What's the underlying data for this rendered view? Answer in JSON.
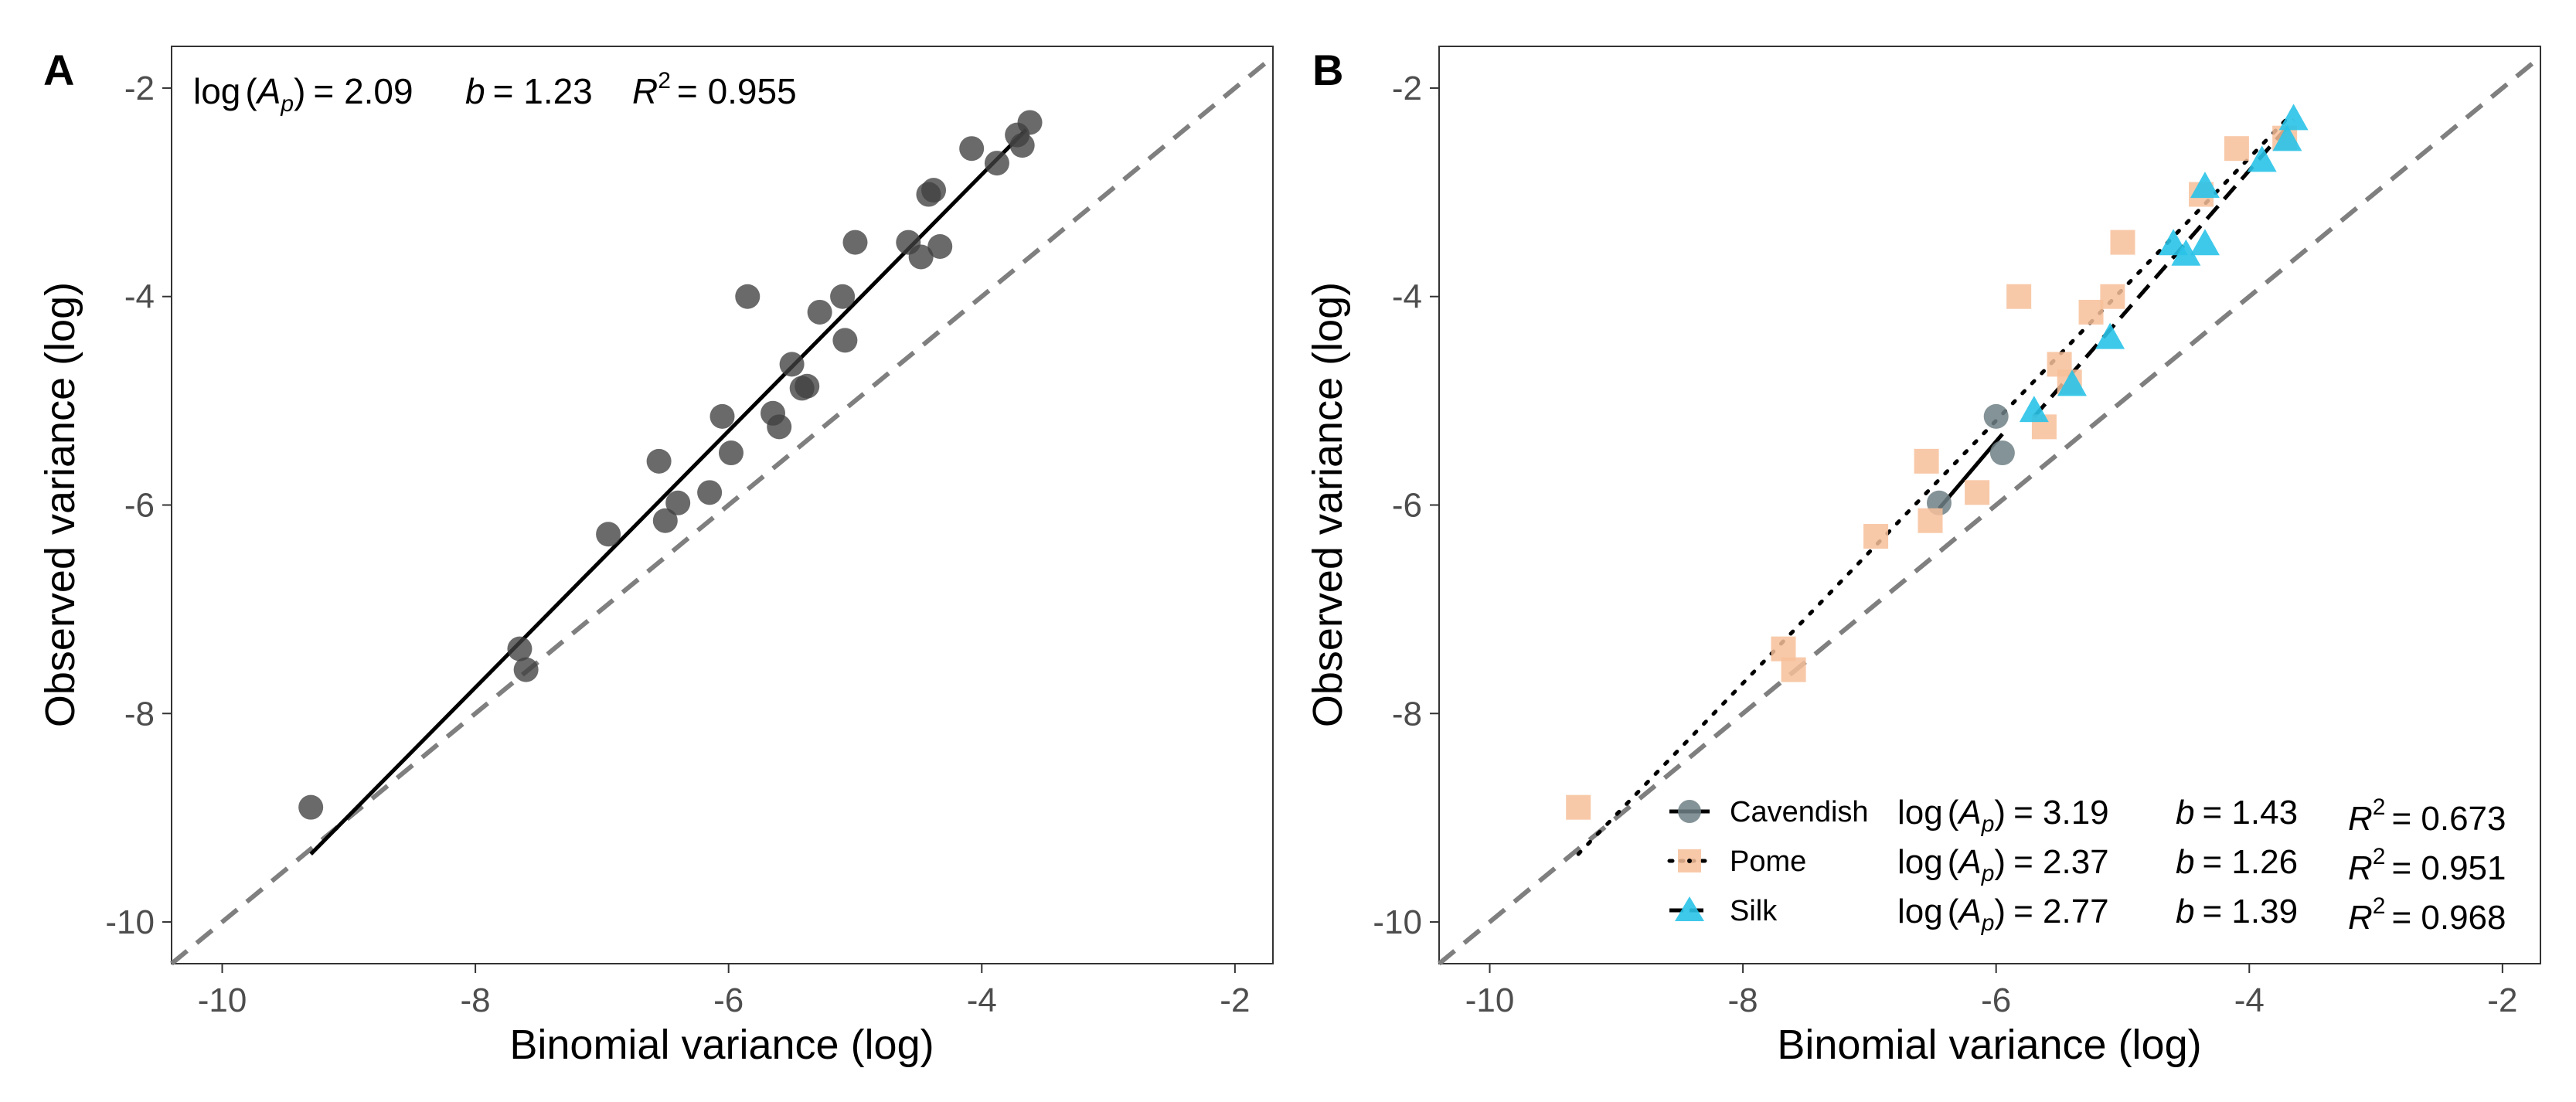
{
  "chart_data": [
    {
      "type": "scatter",
      "panel_label": "A",
      "xlabel": "Binomial variance (log)",
      "ylabel": "Observed variance (log)",
      "xlim": [
        -10.4,
        -1.7
      ],
      "ylim": [
        -10.4,
        -1.6
      ],
      "xticks": [
        -10,
        -8,
        -6,
        -4,
        -2
      ],
      "yticks": [
        -10,
        -8,
        -6,
        -4,
        -2
      ],
      "x_tick_labels": [
        "-10",
        "-8",
        "-6",
        "-4",
        "-2"
      ],
      "y_tick_labels": [
        "-10",
        "-8",
        "-6",
        "-4",
        "-2"
      ],
      "identity_line": true,
      "annotation": {
        "log_ap_label": "log",
        "ap_symbol": "A",
        "ap_sub": "p",
        "log_ap_value": "= 2.09",
        "b_label": "b",
        "b_value": "= 1.23",
        "r2_label": "R",
        "r2_sup": "2",
        "r2_value": "= 0.955"
      },
      "fit": {
        "intercept": 2.09,
        "slope": 1.23,
        "x_range": [
          -9.3,
          -3.65
        ]
      },
      "points": {
        "x": [
          -9.3,
          -7.65,
          -7.6,
          -6.95,
          -6.55,
          -6.5,
          -6.4,
          -6.15,
          -6.05,
          -5.98,
          -5.85,
          -5.65,
          -5.6,
          -5.5,
          -5.42,
          -5.38,
          -5.28,
          -5.1,
          -5.08,
          -5.0,
          -4.58,
          -4.48,
          -4.42,
          -4.38,
          -4.33,
          -4.08,
          -3.88,
          -3.72,
          -3.68,
          -3.62
        ],
        "y": [
          -8.9,
          -7.38,
          -7.58,
          -6.28,
          -5.58,
          -6.15,
          -5.98,
          -5.88,
          -5.15,
          -5.5,
          -4.0,
          -5.12,
          -5.25,
          -4.65,
          -4.88,
          -4.86,
          -4.15,
          -4.0,
          -4.42,
          -3.48,
          -3.48,
          -3.62,
          -3.02,
          -2.98,
          -3.52,
          -2.58,
          -2.72,
          -2.45,
          -2.55,
          -2.33
        ]
      }
    },
    {
      "type": "scatter",
      "panel_label": "B",
      "xlabel": "Binomial variance (log)",
      "ylabel": "Observed variance (log)",
      "xlim": [
        -10.4,
        -1.7
      ],
      "ylim": [
        -10.4,
        -1.6
      ],
      "xticks": [
        -10,
        -8,
        -6,
        -4,
        -2
      ],
      "yticks": [
        -10,
        -8,
        -6,
        -4,
        -2
      ],
      "x_tick_labels": [
        "-10",
        "-8",
        "-6",
        "-4",
        "-2"
      ],
      "y_tick_labels": [
        "-10",
        "-8",
        "-6",
        "-4",
        "-2"
      ],
      "identity_line": true,
      "legend_position": "bottom-right",
      "series": [
        {
          "name": "Cavendish",
          "marker": "circle",
          "color": "#6f8085",
          "line_style": "solid",
          "log_ap_value": "= 3.19",
          "b_value": "= 1.43",
          "r2_value": "= 0.673",
          "fit": {
            "intercept": 3.19,
            "slope": 1.43,
            "x_range": [
              -6.45,
              -5.95
            ]
          },
          "x": [
            -6.45,
            -6.0,
            -5.95
          ],
          "y": [
            -5.98,
            -5.15,
            -5.5
          ]
        },
        {
          "name": "Pome",
          "marker": "square",
          "color": "#f7c09a",
          "line_style": "dotted",
          "log_ap_value": "= 2.37",
          "b_value": "= 1.26",
          "r2_value": "= 0.951",
          "fit": {
            "intercept": 2.37,
            "slope": 1.26,
            "x_range": [
              -9.3,
              -3.68
            ]
          },
          "x": [
            -9.3,
            -7.68,
            -7.6,
            -6.95,
            -6.55,
            -6.52,
            -6.15,
            -5.82,
            -5.62,
            -5.5,
            -5.42,
            -5.25,
            -5.08,
            -5.0,
            -4.38,
            -4.1,
            -3.72
          ],
          "y": [
            -8.9,
            -7.38,
            -7.58,
            -6.3,
            -5.58,
            -6.15,
            -5.88,
            -4.0,
            -5.25,
            -4.65,
            -4.82,
            -4.15,
            -4.0,
            -3.48,
            -3.02,
            -2.58,
            -2.48
          ]
        },
        {
          "name": "Silk",
          "marker": "triangle",
          "color": "#29c3e8",
          "line_style": "dashed",
          "log_ap_value": "= 2.77",
          "b_value": "= 1.39",
          "r2_value": "= 0.968",
          "fit": {
            "intercept": 2.77,
            "slope": 1.39,
            "x_range": [
              -5.7,
              -3.65
            ]
          },
          "x": [
            -5.7,
            -5.4,
            -5.1,
            -4.6,
            -4.5,
            -4.35,
            -4.35,
            -3.9,
            -3.7,
            -3.65
          ],
          "y": [
            -5.1,
            -4.85,
            -4.4,
            -3.5,
            -3.6,
            -3.5,
            -2.95,
            -2.7,
            -2.5,
            -2.3
          ]
        }
      ],
      "annotation": {
        "log_label": "log",
        "ap_symbol": "A",
        "ap_sub": "p",
        "b_label": "b",
        "r2_label": "R",
        "r2_sup": "2"
      }
    }
  ]
}
